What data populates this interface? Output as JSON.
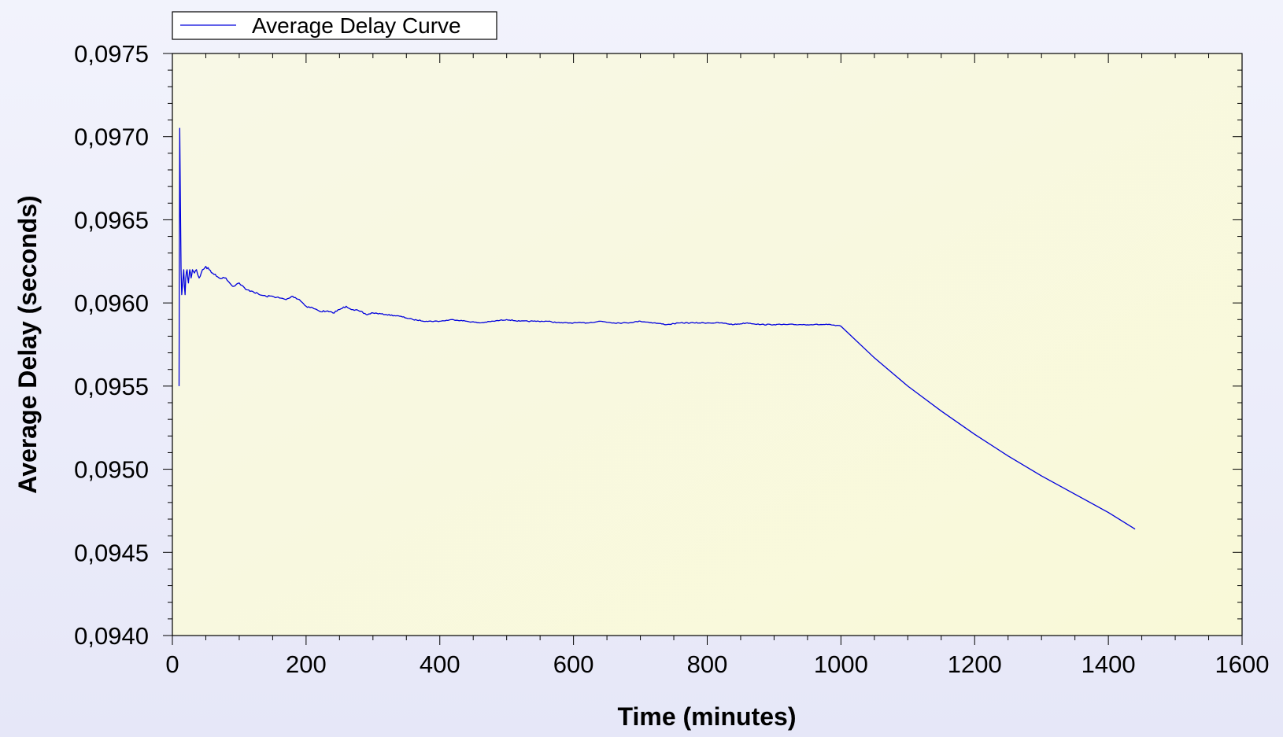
{
  "colors": {
    "series": "#0000dd",
    "plot_bg_from": "#f8f8e6",
    "plot_bg_to": "#f9f9d8",
    "page_bg": "#ececfa",
    "axis": "#000000"
  },
  "chart_data": {
    "type": "line",
    "title": "",
    "xlabel": "Time (minutes)",
    "ylabel": "Average Delay (seconds)",
    "xlim": [
      0,
      1600
    ],
    "ylim": [
      0.094,
      0.0975
    ],
    "x_ticks": [
      0,
      200,
      400,
      600,
      800,
      1000,
      1200,
      1400,
      1600
    ],
    "x_tick_labels": [
      "0",
      "200",
      "400",
      "600",
      "800",
      "1000",
      "1200",
      "1400",
      "1600"
    ],
    "y_ticks": [
      0.094,
      0.0945,
      0.095,
      0.0955,
      0.096,
      0.0965,
      0.097,
      0.0975
    ],
    "y_tick_labels": [
      "0,0940",
      "0,0945",
      "0,0950",
      "0,0955",
      "0,0960",
      "0,0965",
      "0,0970",
      "0,0975"
    ],
    "grid": false,
    "legend": {
      "position": "top-left",
      "entries": [
        "Average Delay Curve"
      ]
    },
    "series": [
      {
        "name": "Average Delay Curve",
        "x": [
          10,
          11,
          12,
          13,
          14,
          15,
          16,
          17,
          18,
          19,
          20,
          22,
          24,
          26,
          28,
          30,
          33,
          36,
          40,
          45,
          50,
          55,
          60,
          70,
          80,
          90,
          100,
          110,
          120,
          130,
          140,
          150,
          160,
          170,
          180,
          190,
          200,
          210,
          220,
          230,
          240,
          250,
          260,
          270,
          280,
          290,
          300,
          320,
          340,
          360,
          380,
          400,
          420,
          440,
          460,
          480,
          500,
          520,
          540,
          560,
          580,
          600,
          620,
          640,
          660,
          680,
          700,
          720,
          740,
          760,
          780,
          800,
          820,
          840,
          860,
          880,
          900,
          920,
          940,
          960,
          980,
          1000,
          1050,
          1100,
          1150,
          1200,
          1250,
          1300,
          1350,
          1400,
          1440
        ],
        "y": [
          0.0955,
          0.09705,
          0.0966,
          0.0962,
          0.09605,
          0.0961,
          0.09615,
          0.0962,
          0.0961,
          0.09605,
          0.09615,
          0.0962,
          0.09612,
          0.0962,
          0.09615,
          0.0962,
          0.09618,
          0.0962,
          0.09615,
          0.0962,
          0.09622,
          0.0962,
          0.09618,
          0.09615,
          0.09615,
          0.0961,
          0.09612,
          0.09608,
          0.09607,
          0.09605,
          0.09604,
          0.09604,
          0.09603,
          0.09602,
          0.09604,
          0.09602,
          0.09598,
          0.09597,
          0.09595,
          0.09595,
          0.09594,
          0.09596,
          0.09598,
          0.09596,
          0.09595,
          0.09593,
          0.09594,
          0.09593,
          0.09592,
          0.0959,
          0.09589,
          0.09589,
          0.0959,
          0.09589,
          0.09588,
          0.09589,
          0.0959,
          0.09589,
          0.09589,
          0.09589,
          0.09588,
          0.09588,
          0.09588,
          0.09589,
          0.09588,
          0.09588,
          0.09589,
          0.09588,
          0.09587,
          0.09588,
          0.09588,
          0.09588,
          0.09588,
          0.09587,
          0.09588,
          0.09587,
          0.09587,
          0.09587,
          0.09587,
          0.09587,
          0.09587,
          0.09586,
          0.09567,
          0.0955,
          0.09535,
          0.09521,
          0.09508,
          0.09496,
          0.09485,
          0.09474,
          0.09464
        ]
      }
    ]
  }
}
